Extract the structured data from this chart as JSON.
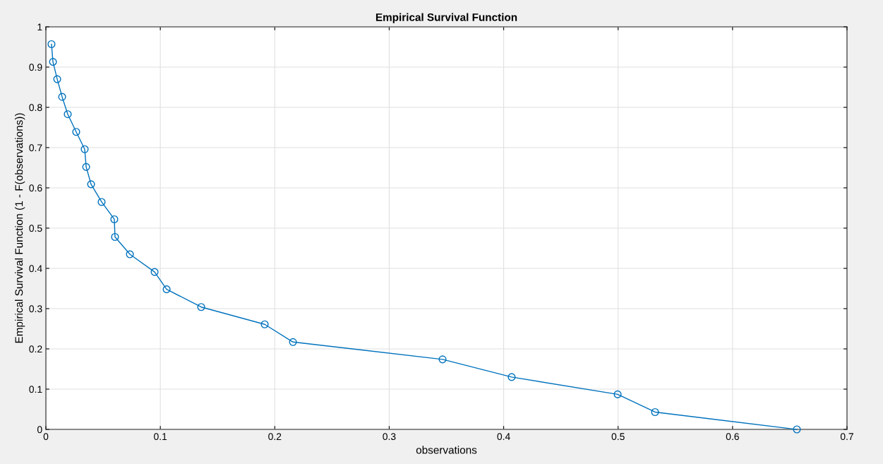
{
  "chart_data": {
    "type": "line",
    "title": "Empirical Survival Function",
    "xlabel": "observations",
    "ylabel": "Empirical Survival Function (1 - F(observations))",
    "series": [
      {
        "color": "#0072bd",
        "x": [
          0.0049,
          0.0062,
          0.0099,
          0.0142,
          0.0191,
          0.0265,
          0.0339,
          0.0352,
          0.0395,
          0.0487,
          0.0598,
          0.0604,
          0.0734,
          0.095,
          0.1055,
          0.1357,
          0.1912,
          0.2159,
          0.3466,
          0.407,
          0.4996,
          0.5323,
          0.6562
        ],
        "values": [
          0.957,
          0.913,
          0.87,
          0.826,
          0.783,
          0.739,
          0.696,
          0.652,
          0.609,
          0.565,
          0.522,
          0.478,
          0.435,
          0.391,
          0.348,
          0.304,
          0.261,
          0.217,
          0.174,
          0.13,
          0.087,
          0.043,
          0.0
        ]
      }
    ],
    "xlim": [
      0,
      0.7
    ],
    "xticks": [
      0,
      0.1,
      0.2,
      0.3,
      0.4,
      0.5,
      0.6,
      0.7
    ],
    "ylim": [
      0,
      1
    ],
    "yticks": [
      0,
      0.1,
      0.2,
      0.3,
      0.4,
      0.5,
      0.6,
      0.7,
      0.8,
      0.9,
      1
    ],
    "grid": true,
    "marker": "circle",
    "line_style": "solid"
  }
}
